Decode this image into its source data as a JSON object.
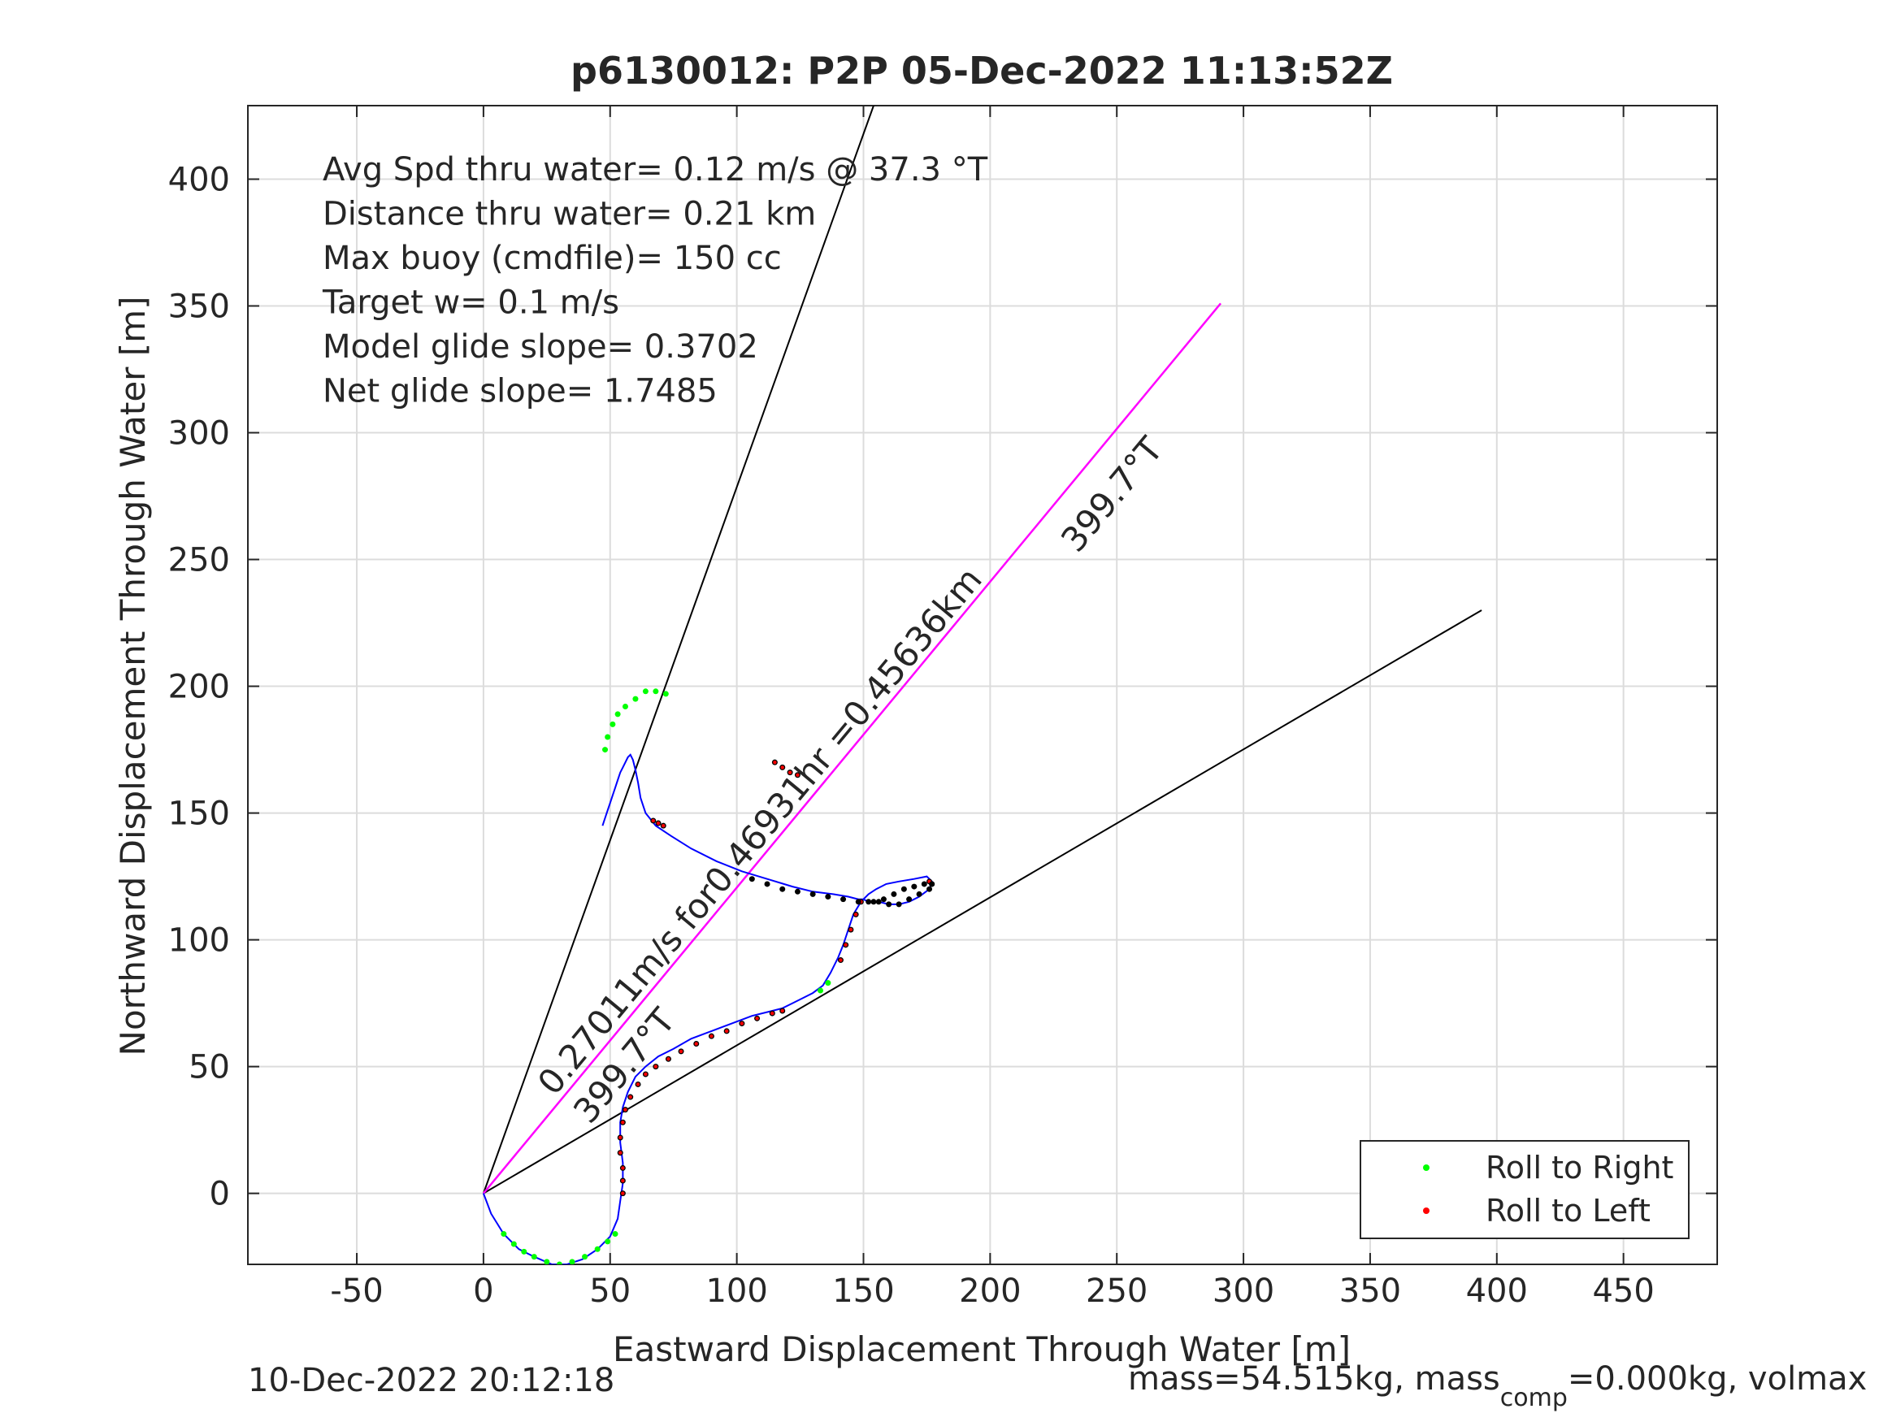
{
  "chart_data": {
    "type": "line",
    "title": "p6130012: P2P 05-Dec-2022 11:13:52Z",
    "xlabel": "Eastward Displacement Through Water [m]",
    "ylabel": "Northward Displacement Through Water [m]",
    "xlim": [
      -93,
      487
    ],
    "ylim": [
      -28,
      429
    ],
    "x_ticks": [
      "-50",
      "0",
      "50",
      "100",
      "150",
      "200",
      "250",
      "300",
      "350",
      "400",
      "450"
    ],
    "y_ticks": [
      "0",
      "50",
      "100",
      "150",
      "200",
      "250",
      "300",
      "350",
      "400"
    ],
    "grid": true,
    "info_lines": [
      "Avg Spd thru water=  0.12 m/s @  37.3 °T",
      "Distance thru water=  0.21 km",
      "Max buoy (cmdfile)= 150 cc",
      "Target w= 0.1 m/s",
      "Model glide slope= 0.3702",
      "Net glide slope= 1.7485"
    ],
    "annotations": {
      "speed_text": "0.27011m/s for0.46931hr =0.45636km",
      "heading_low": "399.7°T",
      "heading_high": "399.7°T"
    },
    "legend": {
      "placement": "bottom-right",
      "entries": [
        {
          "label": "Roll to Right",
          "color": "#00ff00"
        },
        {
          "label": "Roll to Left",
          "color": "#ff0000"
        }
      ]
    },
    "cone_lines": [
      {
        "x": [
          0,
          154
        ],
        "y": [
          0,
          429
        ]
      },
      {
        "x": [
          0,
          394
        ],
        "y": [
          0,
          230
        ]
      }
    ],
    "heading_line": {
      "x": [
        0,
        291
      ],
      "y": [
        0,
        351
      ],
      "color": "#ff00ff"
    },
    "track": {
      "color": "#0000ff",
      "x": [
        0,
        3,
        8,
        14,
        20,
        27,
        33,
        39,
        45,
        50,
        53,
        54,
        55,
        55,
        54,
        54,
        55,
        57,
        60,
        64,
        69,
        75,
        82,
        90,
        98,
        106,
        114,
        118,
        122,
        126,
        130,
        134,
        137,
        140,
        142,
        144,
        146,
        149,
        152,
        155,
        159,
        164,
        170,
        175,
        177,
        176,
        172,
        168,
        164,
        160,
        156,
        152,
        150,
        148,
        144,
        138,
        130,
        122,
        112,
        102,
        92,
        82,
        74,
        68,
        64,
        62,
        61,
        60,
        59,
        58,
        57,
        56,
        55,
        54,
        53,
        52,
        51,
        50,
        49,
        48,
        47
      ],
      "y": [
        0,
        -8,
        -16,
        -22,
        -25,
        -28,
        -28,
        -26,
        -22,
        -17,
        -10,
        -3,
        4,
        12,
        20,
        28,
        34,
        40,
        46,
        50,
        54,
        57,
        61,
        64,
        67,
        70,
        72,
        73,
        75,
        77,
        79,
        82,
        87,
        93,
        98,
        104,
        110,
        115,
        118,
        120,
        122,
        123,
        124,
        125,
        123,
        120,
        117,
        115,
        114,
        114,
        115,
        115,
        116,
        116,
        117,
        118,
        119,
        121,
        124,
        127,
        131,
        136,
        141,
        145,
        150,
        156,
        162,
        167,
        171,
        173,
        172,
        170,
        168,
        166,
        163,
        160,
        157,
        154,
        151,
        148,
        145
      ],
      "points_right": [
        [
          8,
          -16
        ],
        [
          12,
          -20
        ],
        [
          16,
          -23
        ],
        [
          20,
          -25
        ],
        [
          25,
          -27
        ],
        [
          30,
          -28
        ],
        [
          35,
          -27
        ],
        [
          40,
          -25
        ],
        [
          45,
          -22
        ],
        [
          49,
          -19
        ],
        [
          52,
          -16
        ],
        [
          133,
          80
        ],
        [
          136,
          83
        ],
        [
          48,
          175
        ],
        [
          49,
          180
        ],
        [
          51,
          185
        ],
        [
          53,
          189
        ],
        [
          56,
          192
        ],
        [
          60,
          195
        ],
        [
          64,
          198
        ],
        [
          68,
          198
        ],
        [
          72,
          197
        ]
      ],
      "points_left": [
        [
          55,
          0
        ],
        [
          55,
          5
        ],
        [
          55,
          10
        ],
        [
          54,
          16
        ],
        [
          54,
          22
        ],
        [
          55,
          28
        ],
        [
          56,
          33
        ],
        [
          58,
          38
        ],
        [
          61,
          43
        ],
        [
          64,
          47
        ],
        [
          68,
          50
        ],
        [
          73,
          53
        ],
        [
          78,
          56
        ],
        [
          84,
          59
        ],
        [
          90,
          62
        ],
        [
          96,
          64
        ],
        [
          102,
          67
        ],
        [
          108,
          69
        ],
        [
          114,
          71
        ],
        [
          118,
          72
        ],
        [
          141,
          92
        ],
        [
          143,
          98
        ],
        [
          145,
          104
        ],
        [
          147,
          110
        ],
        [
          149,
          115
        ],
        [
          177,
          122
        ],
        [
          176,
          123
        ],
        [
          115,
          170
        ],
        [
          118,
          168
        ],
        [
          121,
          166
        ],
        [
          124,
          165
        ],
        [
          67,
          147
        ],
        [
          69,
          146
        ],
        [
          71,
          145
        ]
      ],
      "points_black": [
        [
          106,
          124
        ],
        [
          112,
          122
        ],
        [
          118,
          120
        ],
        [
          124,
          119
        ],
        [
          130,
          118
        ],
        [
          136,
          117
        ],
        [
          142,
          116
        ],
        [
          148,
          115
        ],
        [
          154,
          115
        ],
        [
          158,
          116
        ],
        [
          162,
          118
        ],
        [
          166,
          120
        ],
        [
          170,
          121
        ],
        [
          174,
          122
        ],
        [
          177,
          122
        ],
        [
          176,
          120
        ],
        [
          172,
          118
        ],
        [
          168,
          116
        ],
        [
          164,
          114
        ],
        [
          160,
          114
        ],
        [
          156,
          115
        ],
        [
          152,
          115
        ]
      ]
    }
  },
  "footer": {
    "timestamp": "10-Dec-2022 20:12:18",
    "mass_text": "mass=54.515kg, mass",
    "mass_sub": "comp",
    "mass_tail": "=0.000kg, volmax"
  }
}
